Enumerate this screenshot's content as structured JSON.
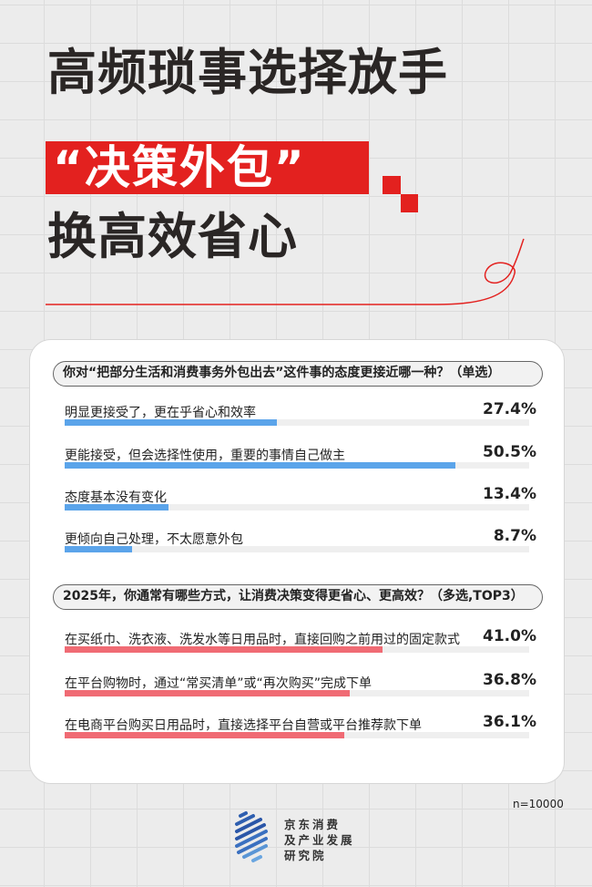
{
  "title": {
    "line1": "高频琐事选择放手",
    "line2": "“决策外包”",
    "line3": "换高效省心"
  },
  "colors": {
    "accent_red": "#e3211f",
    "bar_blue": "#5ba4ea",
    "bar_red": "#f06b74"
  },
  "chart_data": [
    {
      "type": "bar",
      "orientation": "horizontal",
      "title": "你对“把部分生活和消费事务外包出去”这件事的态度更接近哪一种？（单选）",
      "categories": [
        "明显更接受了，更在乎省心和效率",
        "更能接受，但会选择性使用，重要的事情自己做主",
        "态度基本没有变化",
        "更倾向自己处理，不太愿意外包"
      ],
      "values": [
        27.4,
        50.5,
        13.4,
        8.7
      ],
      "labels": [
        "27.4%",
        "50.5%",
        "13.4%",
        "8.7%"
      ],
      "unit": "%",
      "xlim": [
        0,
        60
      ],
      "color": "#5ba4ea"
    },
    {
      "type": "bar",
      "orientation": "horizontal",
      "title": "2025年，你通常有哪些方式，让消费决策变得更省心、更高效？（多选,TOP3）",
      "categories": [
        "在买纸巾、洗衣液、洗发水等日用品时，直接回购之前用过的固定款式",
        "在平台购物时，通过“常买清单”或“再次购买”完成下单",
        "在电商平台购买日用品时，直接选择平台自营或平台推荐款下单"
      ],
      "values": [
        41.0,
        36.8,
        36.1
      ],
      "labels": [
        "41.0%",
        "36.8%",
        "36.1%"
      ],
      "unit": "%",
      "xlim": [
        0,
        60
      ],
      "color": "#f06b74"
    }
  ],
  "sample_note": "n=10000",
  "org": {
    "line1": "京东消费",
    "line2": "及产业发展",
    "line3": "研究院"
  }
}
